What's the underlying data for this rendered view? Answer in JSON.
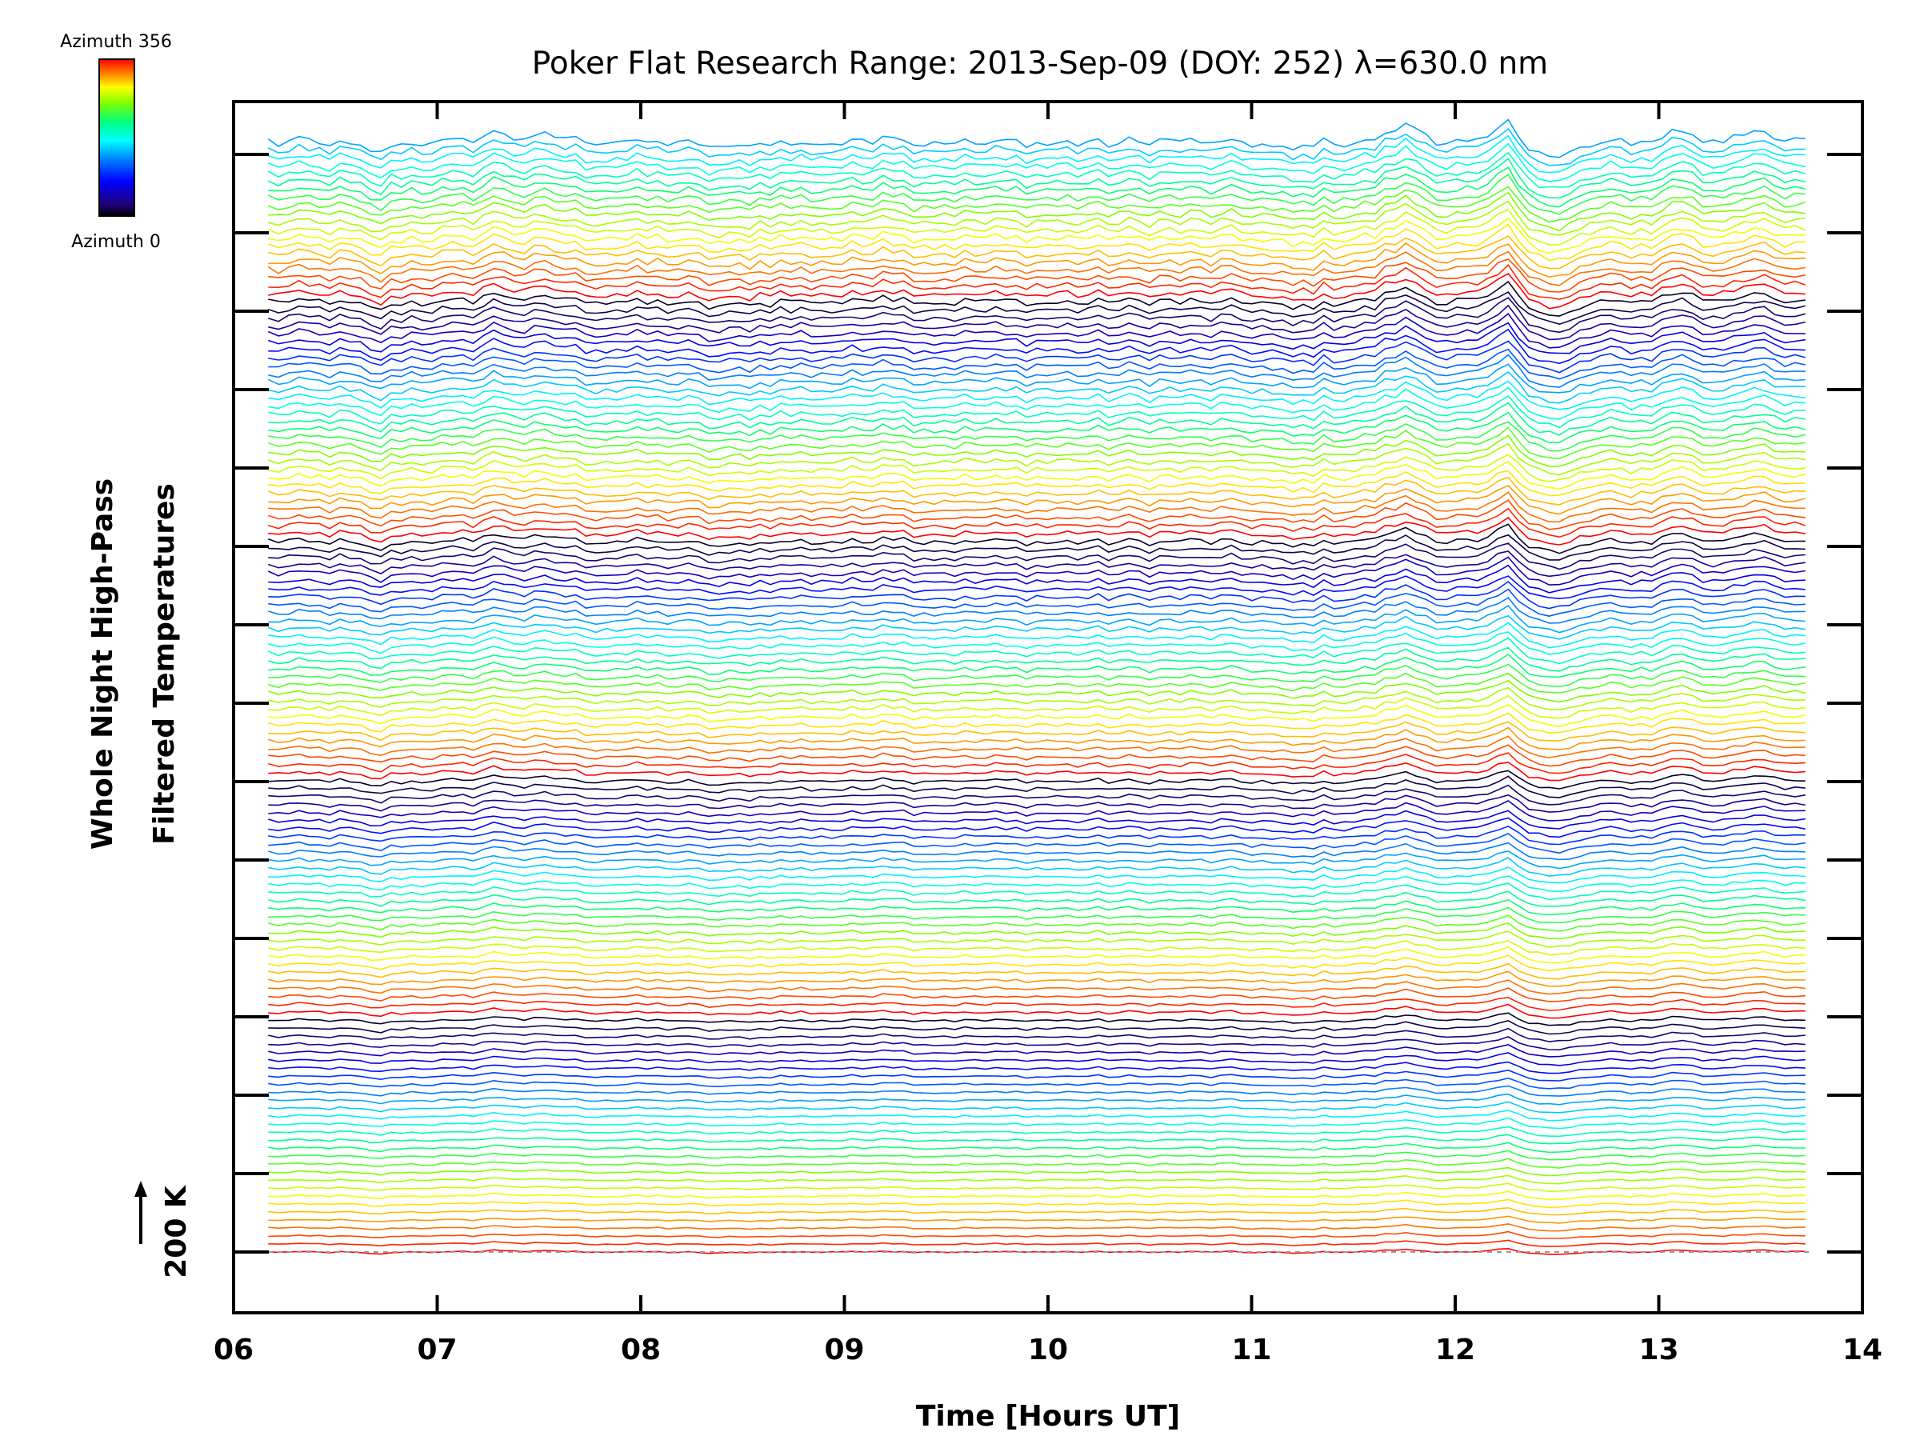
{
  "chart_data": {
    "type": "line",
    "title": "Poker Flat Research Range: 2013-Sep-09 (DOY: 252) λ=630.0 nm",
    "xlabel": "Time [Hours UT]",
    "ylabel_line1": "Whole Night High-Pass",
    "ylabel_line2": "Filtered Temperatures",
    "scale_label": "200 K",
    "xlim": [
      6,
      14
    ],
    "x_ticks": [
      "06",
      "07",
      "08",
      "09",
      "10",
      "11",
      "12",
      "13",
      "14"
    ],
    "colorbar": {
      "top_label": "Azimuth 356",
      "bottom_label": "Azimuth 0",
      "colors": [
        "#ff0000",
        "#ff7f00",
        "#ffff00",
        "#7fff00",
        "#00ff7f",
        "#00ffff",
        "#007fff",
        "#0000ff",
        "#20007f",
        "#000000"
      ]
    },
    "time_start": 6.17,
    "time_end": 13.72,
    "n_traces": 140,
    "events": [
      {
        "t": 6.7,
        "amp": -0.35,
        "w": 0.08
      },
      {
        "t": 7.3,
        "amp": 0.35,
        "w": 0.1
      },
      {
        "t": 7.55,
        "amp": 0.2,
        "w": 0.12
      },
      {
        "t": 8.4,
        "amp": -0.2,
        "w": 0.15
      },
      {
        "t": 9.2,
        "amp": 0.25,
        "w": 0.08
      },
      {
        "t": 11.2,
        "amp": -0.25,
        "w": 0.12
      },
      {
        "t": 11.75,
        "amp": 0.55,
        "w": 0.12
      },
      {
        "t": 12.25,
        "amp": 0.7,
        "w": 0.07
      },
      {
        "t": 12.5,
        "amp": -0.55,
        "w": 0.12
      },
      {
        "t": 13.1,
        "amp": 0.45,
        "w": 0.08
      },
      {
        "t": 13.45,
        "amp": 0.35,
        "w": 0.12
      }
    ]
  }
}
